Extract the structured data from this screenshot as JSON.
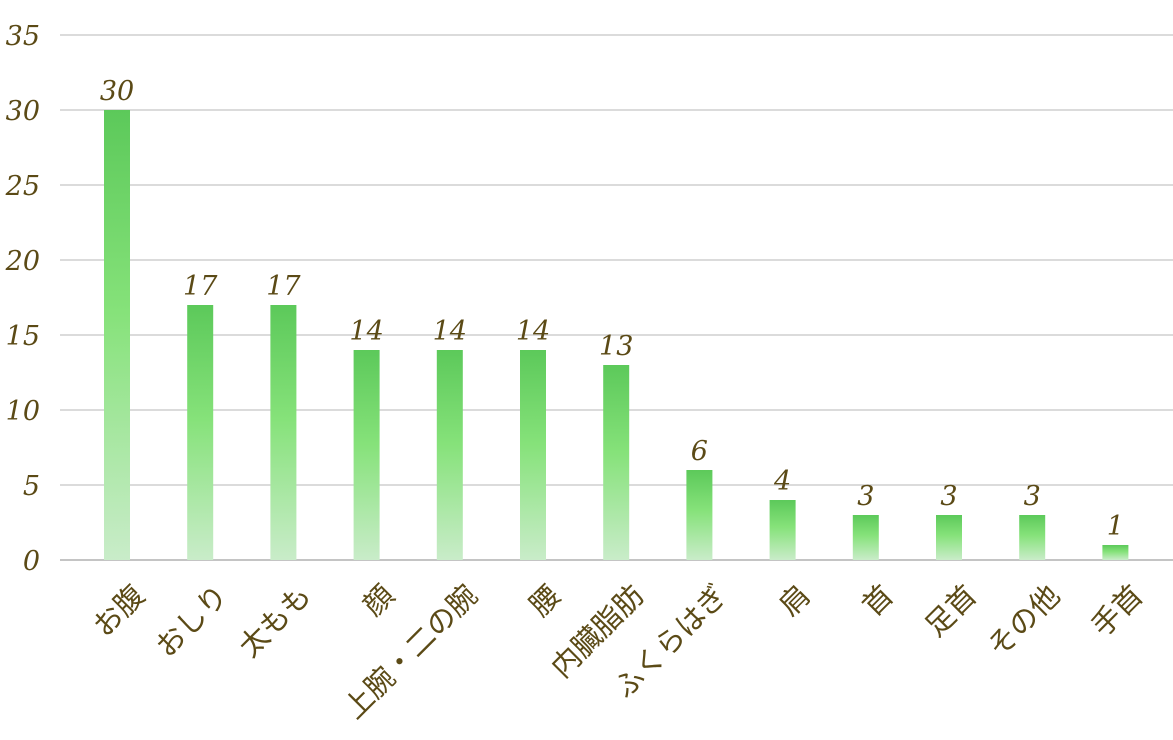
{
  "chart_data": {
    "type": "bar",
    "title": "",
    "xlabel": "",
    "ylabel": "",
    "categories": [
      "お腹",
      "おしり",
      "太もも",
      "顔",
      "上腕・二の腕",
      "腰",
      "内臓脂肪",
      "ふくらはぎ",
      "肩",
      "首",
      "足首",
      "その他",
      "手首"
    ],
    "values": [
      30,
      17,
      17,
      14,
      14,
      14,
      13,
      6,
      4,
      3,
      3,
      3,
      1
    ],
    "ylim": [
      0,
      35
    ],
    "yticks": [
      0,
      5,
      10,
      15,
      20,
      25,
      30,
      35
    ],
    "grid": true,
    "legend": "none",
    "colors": {
      "bar_top": "#5cc95a",
      "bar_mid": "#86e27a",
      "bar_bottom": "#c9ecc9",
      "text": "#5b4a16",
      "grid": "#cfcfcf"
    }
  }
}
